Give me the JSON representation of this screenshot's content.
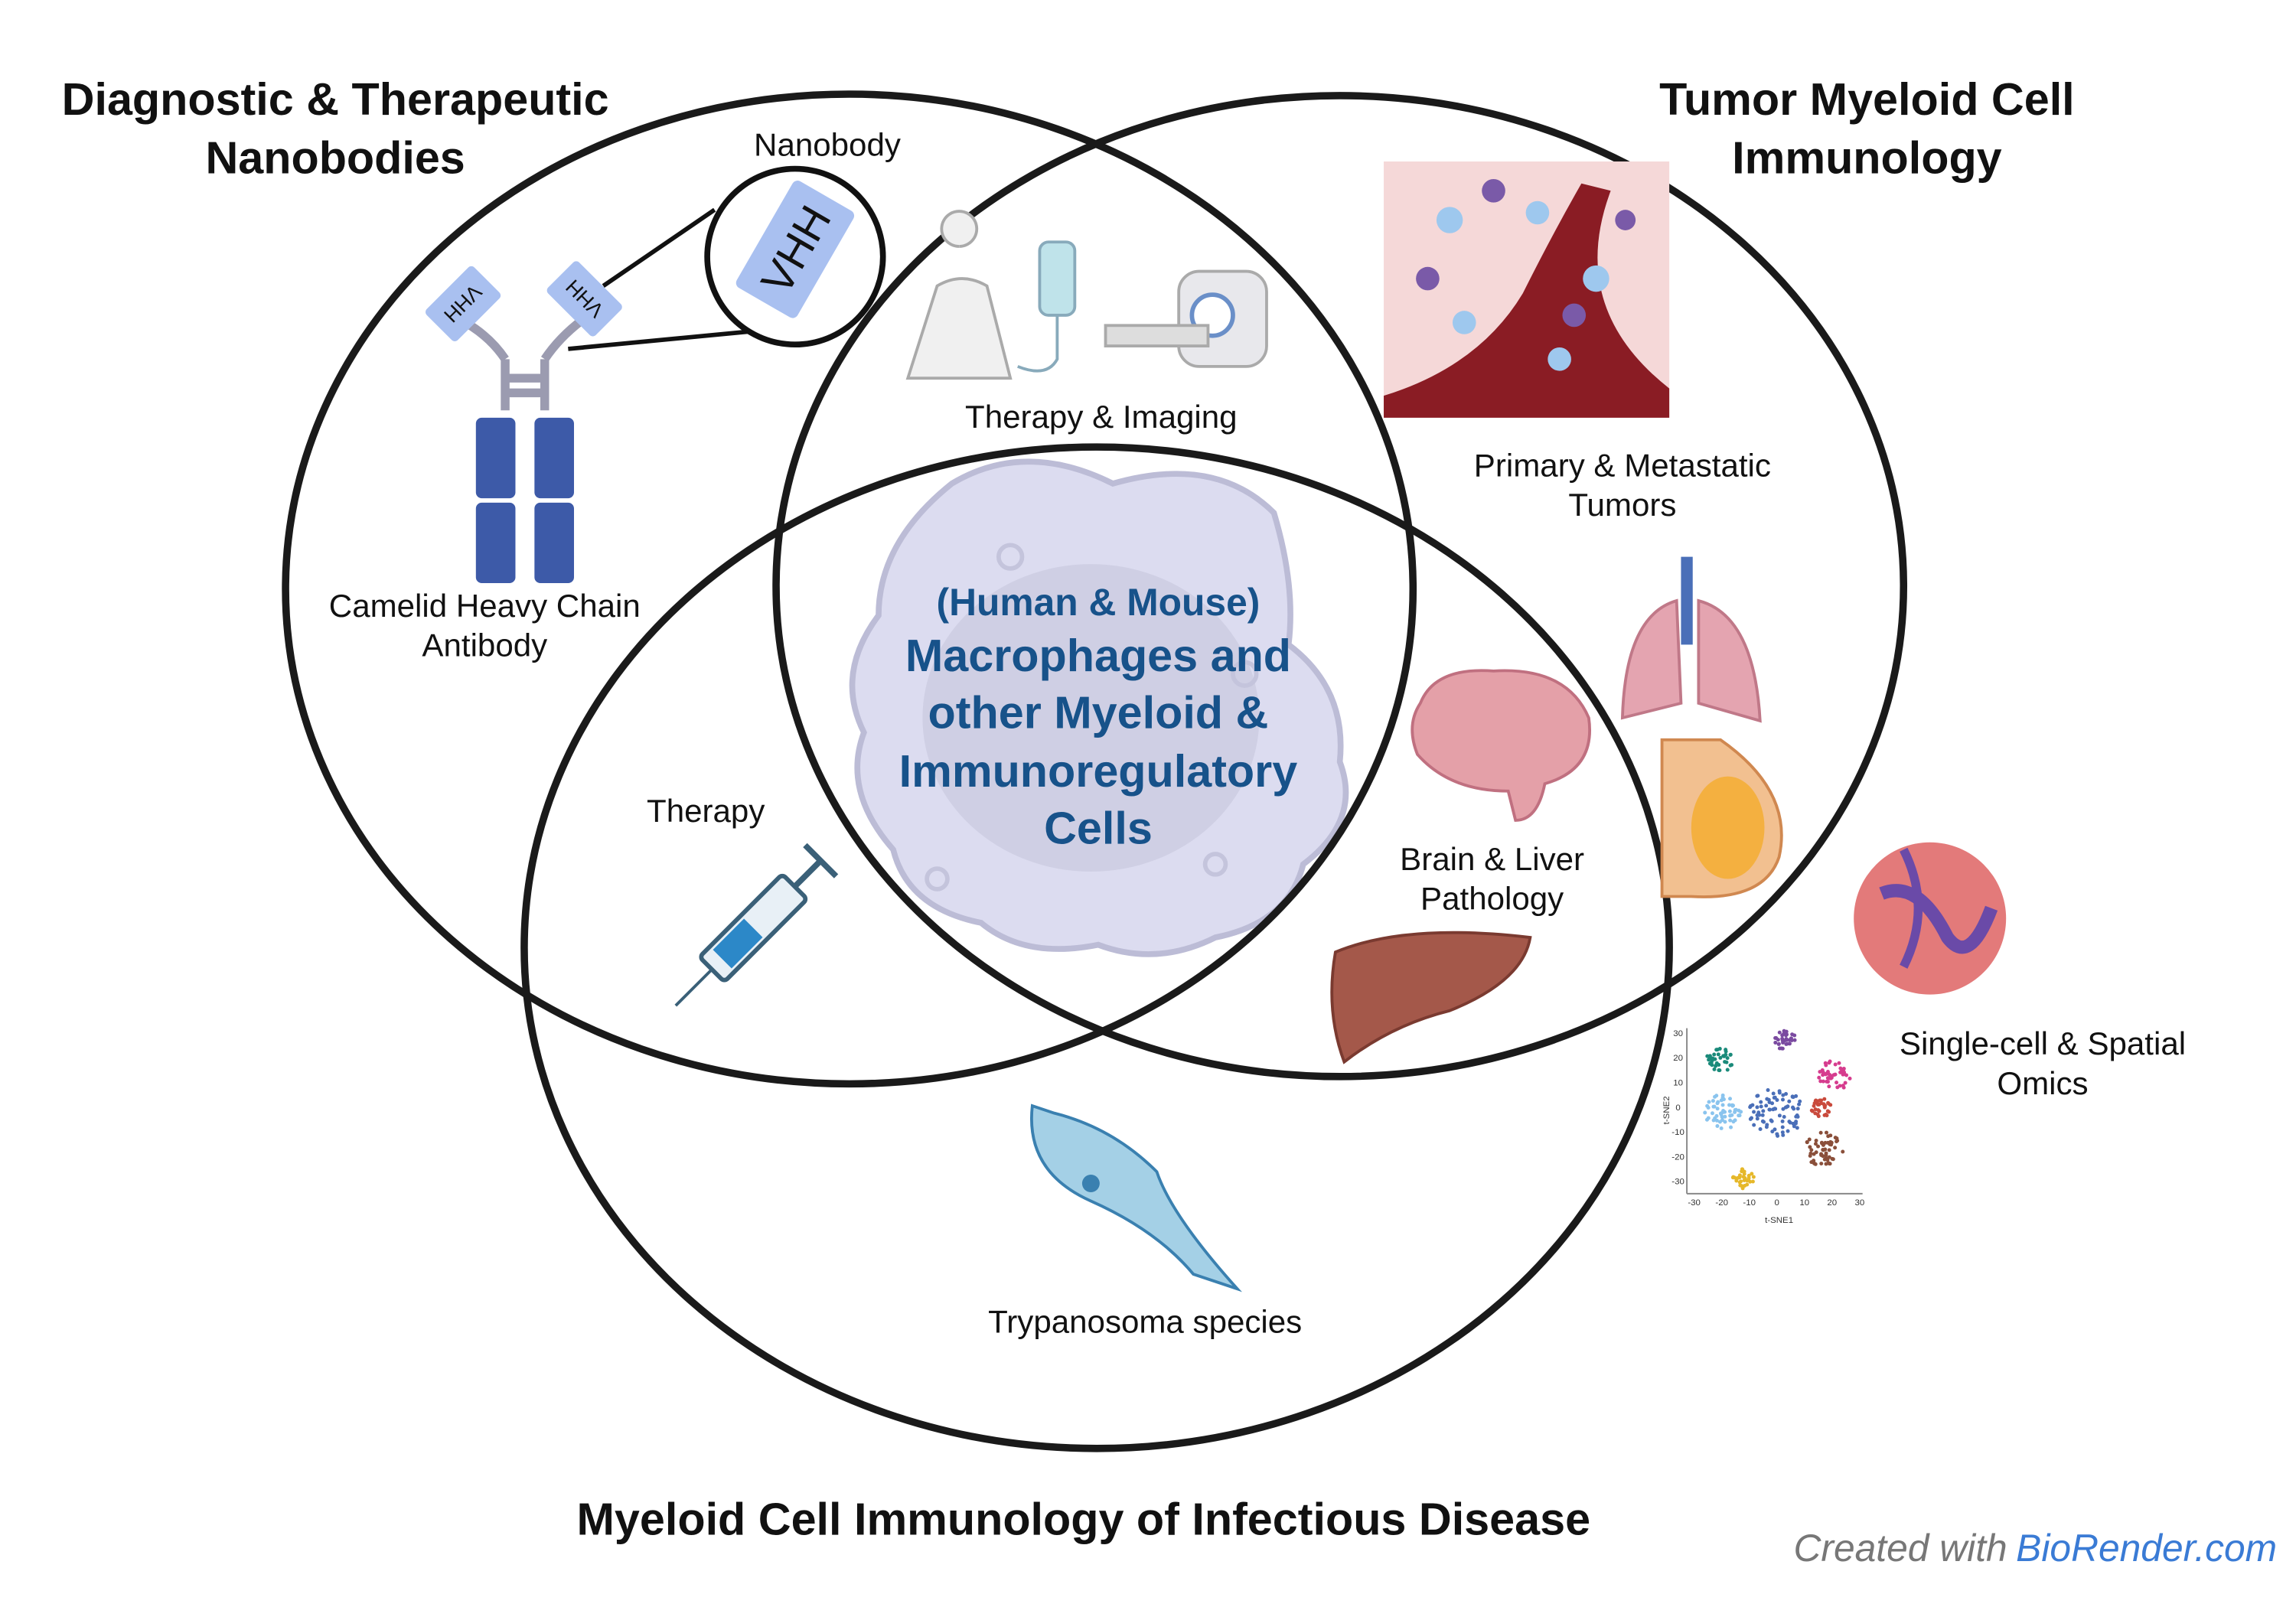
{
  "titles": {
    "left": [
      "Diagnostic & Therapeutic",
      "Nanobodies"
    ],
    "right": [
      "Tumor Myeloid Cell",
      "Immunology"
    ],
    "bottom": "Myeloid Cell Immunology of Infectious Disease"
  },
  "center": {
    "lines": [
      "(Human & Mouse)",
      "Macrophages and",
      "other Myeloid &",
      "Immunoregulatory",
      "Cells"
    ],
    "color": "#17528a"
  },
  "labels": {
    "nanobody": "Nanobody",
    "vhh": "VHH",
    "therapy_imaging": "Therapy & Imaging",
    "tumors": [
      "Primary & Metastatic",
      "Tumors"
    ],
    "antibody": [
      "Camelid Heavy Chain",
      "Antibody"
    ],
    "therapy": "Therapy",
    "brain_liver": [
      "Brain & Liver",
      "Pathology"
    ],
    "omics": [
      "Single-cell & Spatial",
      "Omics"
    ],
    "trypanosoma": "Trypanosoma species"
  },
  "tsne": {
    "xlabel": "t-SNE1",
    "ylabel": "t-SNE2",
    "xticks": [
      "-30",
      "-20",
      "-10",
      "0",
      "10",
      "20",
      "30"
    ],
    "yticks": [
      "30",
      "20",
      "10",
      "0",
      "-10",
      "-20",
      "-30"
    ],
    "cluster_colors": [
      "#1a8a7a",
      "#7a4aa0",
      "#4a6fb8",
      "#d63c8e",
      "#8ac4ee",
      "#c94a3c",
      "#8a4f3a",
      "#e6b82a"
    ]
  },
  "footer": {
    "prefix": "Created with",
    "brand": "BioRender.com",
    "brand_color": "#3a7bd5"
  }
}
